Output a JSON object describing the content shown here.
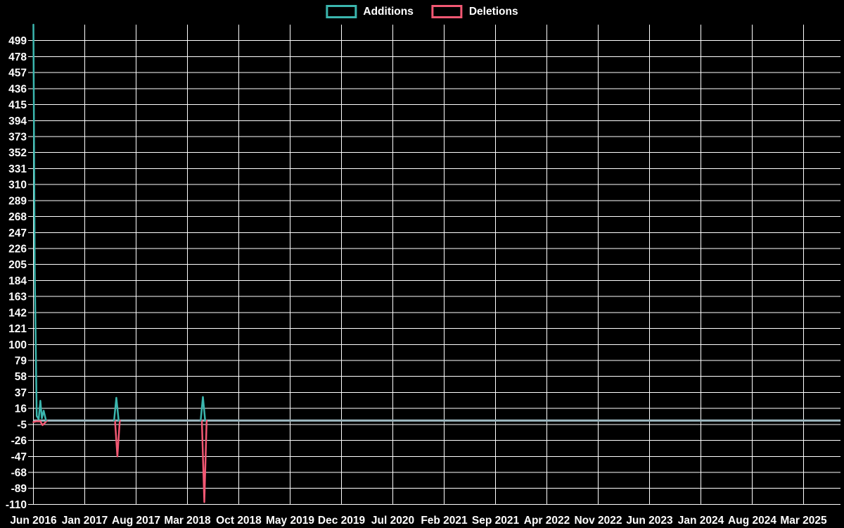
{
  "legend": {
    "items": [
      {
        "label": "Additions",
        "color": "#3bb6ae"
      },
      {
        "label": "Deletions",
        "color": "#f25873"
      }
    ]
  },
  "chart_data": {
    "type": "line",
    "title": "",
    "xlabel": "",
    "ylabel": "",
    "background_color": "#000000",
    "grid": true,
    "grid_color": "#ffffff",
    "legend_position": "top-center",
    "x_tick_labels": [
      "Jun 2016",
      "Jan 2017",
      "Aug 2017",
      "Mar 2018",
      "Oct 2018",
      "May 2019",
      "Dec 2019",
      "Jul 2020",
      "Feb 2021",
      "Sep 2021",
      "Apr 2022",
      "Nov 2022",
      "Jun 2023",
      "Jan 2024",
      "Aug 2024",
      "Mar 2025"
    ],
    "x_tick_interval_months": 7,
    "y_ticks": [
      499,
      478,
      457,
      436,
      415,
      394,
      373,
      352,
      331,
      310,
      289,
      268,
      247,
      226,
      205,
      184,
      163,
      142,
      121,
      100,
      79,
      58,
      37,
      16,
      -5,
      -26,
      -47,
      -68,
      -89,
      -110
    ],
    "ylim": [
      -110,
      520
    ],
    "x_unit": "months since Jun 2016",
    "x_extent_months": 110.1,
    "baseline": {
      "value": 0,
      "color": "#9db8c0",
      "note": "both series are 0 everywhere outside the listed segments"
    },
    "series": [
      {
        "name": "Additions",
        "color": "#3bb6ae",
        "rest_value": 0,
        "segments": [
          [
            [
              0,
              520
            ],
            [
              0.18,
              195
            ],
            [
              0.45,
              6
            ],
            [
              0.72,
              2
            ],
            [
              0.95,
              26
            ],
            [
              1.15,
              3
            ],
            [
              1.4,
              13
            ],
            [
              1.72,
              0
            ]
          ],
          [
            [
              11.0,
              0
            ],
            [
              11.31,
              30
            ],
            [
              11.62,
              0
            ]
          ],
          [
            [
              22.8,
              0
            ],
            [
              23.11,
              31
            ],
            [
              23.42,
              0
            ]
          ]
        ]
      },
      {
        "name": "Deletions",
        "color": "#f25873",
        "rest_value": 0,
        "segments": [
          [
            [
              0,
              -2
            ],
            [
              0.35,
              -1
            ],
            [
              0.95,
              -1
            ],
            [
              1.25,
              -6
            ],
            [
              1.55,
              -3
            ],
            [
              1.85,
              0
            ]
          ],
          [
            [
              11.12,
              0
            ],
            [
              11.45,
              -47
            ],
            [
              11.78,
              0
            ]
          ],
          [
            [
              22.97,
              0
            ],
            [
              23.3,
              -107
            ],
            [
              23.62,
              0
            ]
          ]
        ]
      }
    ]
  }
}
